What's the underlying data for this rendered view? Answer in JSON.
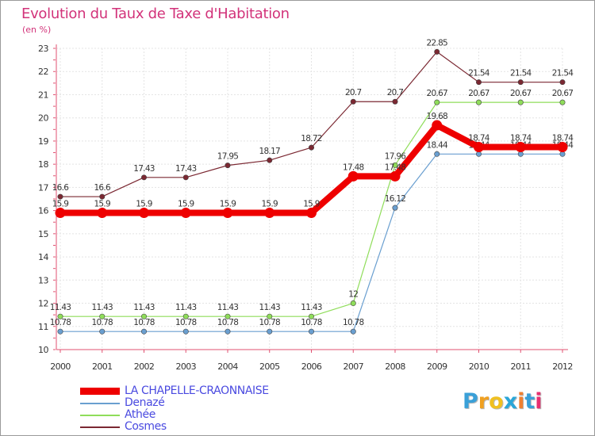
{
  "title": "Evolution du Taux de Taxe d'Habitation",
  "unit_label": "(en %)",
  "brand": {
    "text": "Proxiti",
    "letter_colors": [
      "#3aa0d8",
      "#f0a020",
      "#f0c020",
      "#2aa6d8",
      "#f08030",
      "#3aa0d8",
      "#e83070"
    ]
  },
  "chart_data": {
    "type": "line",
    "title": "Evolution du Taux de Taxe d'Habitation",
    "ylabel": "(en %)",
    "xlabel": "",
    "ylim": [
      10,
      23
    ],
    "yticks": [
      10,
      11,
      12,
      13,
      14,
      15,
      16,
      17,
      18,
      19,
      20,
      21,
      22,
      23
    ],
    "categories": [
      "2000",
      "2001",
      "2002",
      "2003",
      "2004",
      "2005",
      "2006",
      "2007",
      "2008",
      "2009",
      "2010",
      "2011",
      "2012"
    ],
    "grid": true,
    "legend_position": "bottom-left",
    "series": [
      {
        "name": "Cosmes",
        "color": "#7b2832",
        "values": [
          16.6,
          16.6,
          17.43,
          17.43,
          17.95,
          18.17,
          18.72,
          20.7,
          20.7,
          22.85,
          21.54,
          21.54,
          21.54
        ],
        "labels": [
          "16.6",
          "16.6",
          "17.43",
          "17.43",
          "17.95",
          "18.17",
          "18.72",
          "20.7",
          "20.7",
          "22.85",
          "21.54",
          "21.54",
          "21.54"
        ]
      },
      {
        "name": "Athée",
        "color": "#8fdd5a",
        "values": [
          11.43,
          11.43,
          11.43,
          11.43,
          11.43,
          11.43,
          11.43,
          12,
          17.96,
          20.67,
          20.67,
          20.67,
          20.67
        ],
        "labels": [
          "11.43",
          "11.43",
          "11.43",
          "11.43",
          "11.43",
          "11.43",
          "11.43",
          "12",
          "17.96",
          "20.67",
          "20.67",
          "20.67",
          "20.67"
        ]
      },
      {
        "name": "Denazé",
        "color": "#6a9fd0",
        "values": [
          10.78,
          10.78,
          10.78,
          10.78,
          10.78,
          10.78,
          10.78,
          10.78,
          16.12,
          18.44,
          18.44,
          18.44,
          18.44
        ],
        "labels": [
          "10.78",
          "10.78",
          "10.78",
          "10.78",
          "10.78",
          "10.78",
          "10.78",
          "10.78",
          "16.12",
          "18.44",
          "18.44",
          "18.44",
          "18.44"
        ]
      },
      {
        "name": "LA CHAPELLE-CRAONNAISE",
        "color": "#ee0000",
        "values": [
          15.9,
          15.9,
          15.9,
          15.9,
          15.9,
          15.9,
          15.9,
          17.48,
          17.48,
          19.68,
          18.74,
          18.74,
          18.74
        ],
        "labels": [
          "15.9",
          "15.9",
          "15.9",
          "15.9",
          "15.9",
          "15.9",
          "15.9",
          "17.48",
          "17.48",
          "19.68",
          "18.74",
          "18.74",
          "18.74"
        ]
      }
    ],
    "legend_order": [
      "LA CHAPELLE-CRAONNAISE",
      "Denazé",
      "Athée",
      "Cosmes"
    ]
  }
}
